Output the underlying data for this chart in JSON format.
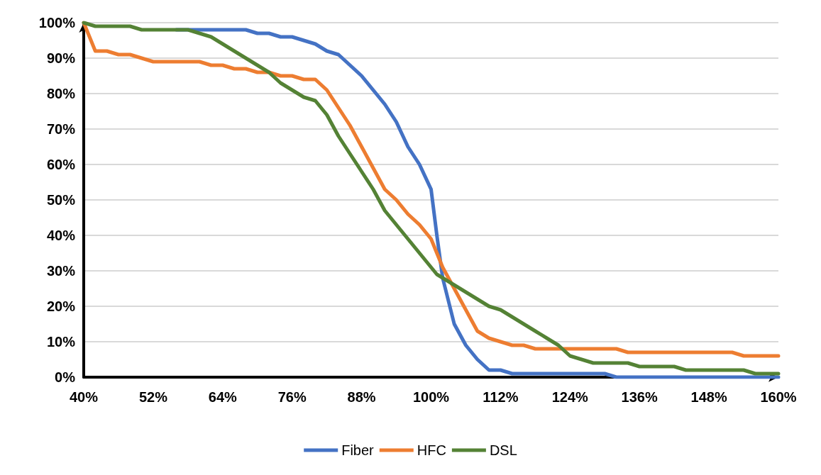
{
  "chart_data": {
    "type": "line",
    "x": [
      40,
      42,
      44,
      46,
      48,
      50,
      52,
      54,
      56,
      58,
      60,
      62,
      64,
      66,
      68,
      70,
      72,
      74,
      76,
      78,
      80,
      82,
      84,
      86,
      88,
      90,
      92,
      94,
      96,
      98,
      100,
      101,
      102,
      104,
      106,
      108,
      110,
      112,
      114,
      116,
      118,
      120,
      122,
      124,
      126,
      128,
      130,
      132,
      134,
      136,
      138,
      140,
      142,
      144,
      146,
      148,
      150,
      152,
      154,
      156,
      158,
      160
    ],
    "series": [
      {
        "name": "Fiber",
        "color": "#4472c4",
        "values": [
          null,
          null,
          null,
          null,
          null,
          null,
          null,
          null,
          98,
          98,
          98,
          98,
          98,
          98,
          98,
          97,
          97,
          96,
          96,
          95,
          94,
          92,
          91,
          88,
          85,
          81,
          77,
          72,
          65,
          60,
          53,
          40,
          28,
          15,
          9,
          5,
          2,
          2,
          1,
          1,
          1,
          1,
          1,
          1,
          1,
          1,
          1,
          0,
          0,
          0,
          0,
          0,
          0,
          0,
          0,
          0,
          0,
          0,
          0,
          0,
          0,
          0
        ]
      },
      {
        "name": "HFC",
        "color": "#ed7d31",
        "values": [
          100,
          92,
          92,
          91,
          91,
          90,
          89,
          89,
          89,
          89,
          89,
          88,
          88,
          87,
          87,
          86,
          86,
          85,
          85,
          84,
          84,
          81,
          76,
          71,
          65,
          59,
          53,
          50,
          46,
          43,
          39,
          35,
          31,
          25,
          19,
          13,
          11,
          10,
          9,
          9,
          8,
          8,
          8,
          8,
          8,
          8,
          8,
          8,
          7,
          7,
          7,
          7,
          7,
          7,
          7,
          7,
          7,
          7,
          6,
          6,
          6,
          6
        ]
      },
      {
        "name": "DSL",
        "color": "#548235",
        "values": [
          100,
          99,
          99,
          99,
          99,
          98,
          98,
          98,
          98,
          98,
          97,
          96,
          94,
          92,
          90,
          88,
          86,
          83,
          81,
          79,
          78,
          74,
          68,
          63,
          58,
          53,
          47,
          43,
          39,
          35,
          31,
          29,
          28,
          26,
          24,
          22,
          20,
          19,
          17,
          15,
          13,
          11,
          9,
          6,
          5,
          4,
          4,
          4,
          4,
          3,
          3,
          3,
          3,
          2,
          2,
          2,
          2,
          2,
          2,
          1,
          1,
          1
        ]
      }
    ],
    "xlim": [
      40,
      160
    ],
    "xticks": [
      {
        "value": 40,
        "label": "40%"
      },
      {
        "value": 52,
        "label": "52%"
      },
      {
        "value": 64,
        "label": "64%"
      },
      {
        "value": 76,
        "label": "76%"
      },
      {
        "value": 88,
        "label": "88%"
      },
      {
        "value": 100,
        "label": "100%"
      },
      {
        "value": 112,
        "label": "112%"
      },
      {
        "value": 124,
        "label": "124%"
      },
      {
        "value": 136,
        "label": "136%"
      },
      {
        "value": 148,
        "label": "148%"
      },
      {
        "value": 160,
        "label": "160%"
      }
    ],
    "ylim": [
      0,
      100
    ],
    "yticks": [
      {
        "value": 0,
        "label": "0%"
      },
      {
        "value": 10,
        "label": "10%"
      },
      {
        "value": 20,
        "label": "20%"
      },
      {
        "value": 30,
        "label": "30%"
      },
      {
        "value": 40,
        "label": "40%"
      },
      {
        "value": 50,
        "label": "50%"
      },
      {
        "value": 60,
        "label": "60%"
      },
      {
        "value": 70,
        "label": "70%"
      },
      {
        "value": 80,
        "label": "80%"
      },
      {
        "value": 90,
        "label": "90%"
      },
      {
        "value": 100,
        "label": "100%"
      }
    ],
    "grid": "y",
    "legend": "bottom",
    "marker": "none",
    "line_style": "solid"
  }
}
